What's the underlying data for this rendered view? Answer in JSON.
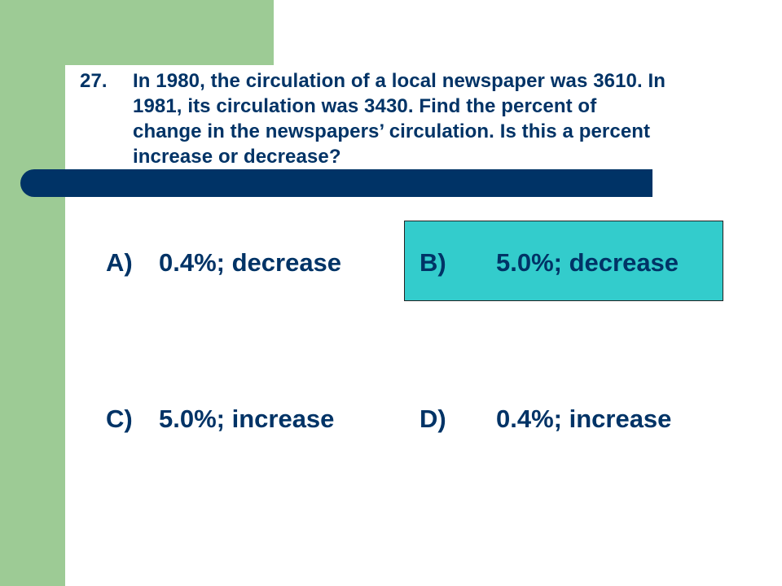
{
  "colors": {
    "sidebar_green": "#9dcb95",
    "text_navy": "#003366",
    "bar_navy": "#003366",
    "highlight_teal": "#33cccc",
    "background": "#ffffff"
  },
  "question": {
    "number": "27.",
    "text": "In 1980, the circulation of a local newspaper was 3610.  In\n1981, its circulation was 3430.  Find the percent of\nchange in the newspapers’ circulation.  Is this a percent\nincrease or decrease?"
  },
  "choices": [
    {
      "letter": "A)",
      "answer": "0.4%; decrease",
      "highlighted": false
    },
    {
      "letter": "B)",
      "answer": "5.0%; decrease",
      "highlighted": true
    },
    {
      "letter": "C)",
      "answer": "5.0%; increase",
      "highlighted": false
    },
    {
      "letter": "D)",
      "answer": "0.4%; increase",
      "highlighted": false
    }
  ]
}
